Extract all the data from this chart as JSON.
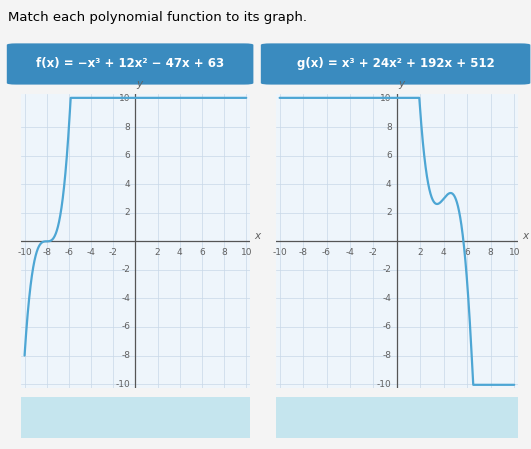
{
  "title": "Match each polynomial function to its graph.",
  "title_fontsize": 9.5,
  "f_label": "f(x) = −x³ + 12x² − 47x + 63",
  "g_label": "g(x) = x³ + 24x² + 192x + 512",
  "box_color": "#3a8bbf",
  "text_color": "#ffffff",
  "curve_color": "#4da6d4",
  "grid_color": "#c8d8e8",
  "axis_color": "#555555",
  "bg_color": "#f4f4f4",
  "plot_bg": "#eef5fb",
  "answer_box_color": "#c5e5ee",
  "xlim": [
    -10,
    10
  ],
  "ylim": [
    -10,
    10
  ],
  "xticks": [
    -10,
    -8,
    -6,
    -4,
    -2,
    2,
    4,
    6,
    8,
    10
  ],
  "yticks": [
    -10,
    -8,
    -6,
    -4,
    -2,
    2,
    4,
    6,
    8
  ],
  "tick_fontsize": 6.5
}
